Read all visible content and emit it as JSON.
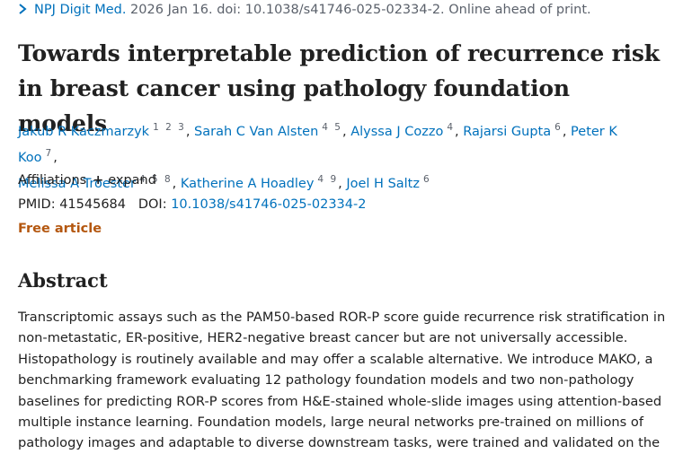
{
  "citation": {
    "icon": "chevron-right-icon",
    "journal": "NPJ Digit Med.",
    "rest": " 2026 Jan 16. doi: 10.1038/s41746-025-02334-2. Online ahead of print."
  },
  "title_lines": [
    "Towards interpretable prediction of recurrence risk",
    "in breast cancer using pathology foundation models"
  ],
  "authors": [
    {
      "name": "Jakub R Kaczmarzyk",
      "affs": "1 2 3"
    },
    {
      "name": "Sarah C Van Alsten",
      "affs": "4 5"
    },
    {
      "name": "Alyssa J Cozzo",
      "affs": "4"
    },
    {
      "name": "Rajarsi Gupta",
      "affs": "6"
    },
    {
      "name": "Peter K Koo",
      "affs": "7"
    },
    {
      "name": "Melissa A Troester",
      "affs": "4 5 8"
    },
    {
      "name": "Katherine A Hoadley",
      "affs": "4 9"
    },
    {
      "name": "Joel H Saltz",
      "affs": "6"
    }
  ],
  "affiliations": {
    "label": "Affiliations",
    "expand_icon": "plus-icon",
    "expand": "expand"
  },
  "ids": {
    "pmid_label": "PMID:",
    "pmid": "41545684",
    "doi_label": "DOI:",
    "doi": "10.1038/s41746-025-02334-2"
  },
  "free_article": "Free article",
  "abstract": {
    "heading": "Abstract",
    "lines": [
      "Transcriptomic assays such as the PAM50-based ROR-P score guide recurrence risk stratification in",
      "non-metastatic, ER-positive, HER2-negative breast cancer but are not universally accessible.",
      "Histopathology is routinely available and may offer a scalable alternative. We introduce MAKO, a",
      "benchmarking framework evaluating 12 pathology foundation models and two non-pathology",
      "baselines for predicting ROR-P scores from H&E-stained whole-slide images using attention-based",
      "multiple instance learning. Foundation models, large neural networks pre-trained on millions of",
      "pathology images and adaptable to diverse downstream tasks, were trained and validated on the"
    ]
  }
}
